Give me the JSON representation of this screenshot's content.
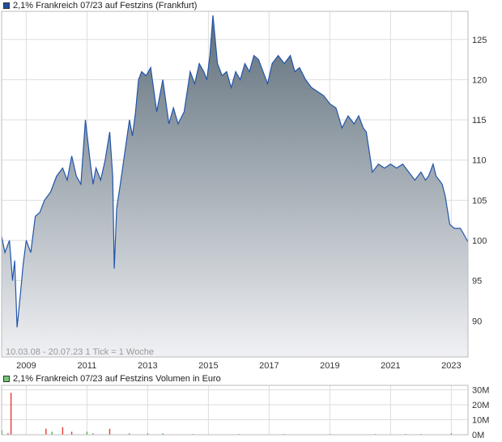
{
  "legend": {
    "price": "2,1% Frankreich 07/23 auf Festzins (Frankfurt)",
    "volume": "2,1% Frankreich 07/23 auf Festzins Volumen in Euro"
  },
  "footer": "10.03.08 - 20.07.23   1 Tick = 1 Woche",
  "colors": {
    "price_line": "#2255aa",
    "area_top": "#5f6f7b",
    "area_bottom": "#f0f1f4",
    "grid": "#dddddd",
    "vol_up": "#4caf50",
    "vol_down": "#e53935",
    "legend_price": "#1f4e9c",
    "legend_volume": "#76c776"
  },
  "chart_data": [
    {
      "type": "area",
      "x_unit": "year",
      "x_ticks": [
        2009,
        2011,
        2013,
        2015,
        2017,
        2019,
        2021,
        2023
      ],
      "x_tick_labels": [
        "2009",
        "2011",
        "2013",
        "2015",
        "2017",
        "2019",
        "2021",
        "2023"
      ],
      "y_ticks": [
        90,
        95,
        100,
        105,
        110,
        115,
        120,
        125
      ],
      "y_tick_labels": [
        "90",
        "95",
        "100",
        "105",
        "110",
        "115",
        "120",
        "125"
      ],
      "xlim": [
        2008.19,
        2023.55
      ],
      "ylim": [
        85.5,
        128.5
      ],
      "y_axis_side": "right",
      "grid": true,
      "x": [
        2008.19,
        2008.3,
        2008.45,
        2008.55,
        2008.62,
        2008.7,
        2008.8,
        2008.9,
        2009.0,
        2009.15,
        2009.3,
        2009.45,
        2009.6,
        2009.8,
        2010.0,
        2010.2,
        2010.35,
        2010.5,
        2010.65,
        2010.8,
        2010.95,
        2011.1,
        2011.2,
        2011.3,
        2011.45,
        2011.6,
        2011.75,
        2011.85,
        2011.9,
        2011.98,
        2012.1,
        2012.25,
        2012.4,
        2012.5,
        2012.6,
        2012.7,
        2012.8,
        2012.95,
        2013.1,
        2013.3,
        2013.5,
        2013.7,
        2013.85,
        2014.0,
        2014.2,
        2014.4,
        2014.55,
        2014.7,
        2014.85,
        2014.95,
        2015.05,
        2015.15,
        2015.3,
        2015.45,
        2015.6,
        2015.75,
        2015.9,
        2016.05,
        2016.2,
        2016.35,
        2016.5,
        2016.65,
        2016.8,
        2016.95,
        2017.1,
        2017.3,
        2017.5,
        2017.7,
        2017.85,
        2018.0,
        2018.2,
        2018.4,
        2018.6,
        2018.8,
        2019.0,
        2019.2,
        2019.4,
        2019.6,
        2019.8,
        2019.95,
        2020.1,
        2020.2,
        2020.4,
        2020.6,
        2020.8,
        2021.0,
        2021.2,
        2021.4,
        2021.6,
        2021.8,
        2022.0,
        2022.15,
        2022.25,
        2022.4,
        2022.5,
        2022.6,
        2022.7,
        2022.8,
        2022.95,
        2023.1,
        2023.3,
        2023.45,
        2023.55
      ],
      "y": [
        100.5,
        98.5,
        100.0,
        95.0,
        97.5,
        89.2,
        93.0,
        97.0,
        100.0,
        98.5,
        103.0,
        103.5,
        105.0,
        106.0,
        108.0,
        109.0,
        107.5,
        110.5,
        108.0,
        107.0,
        115.0,
        110.0,
        107.0,
        109.0,
        107.5,
        110.0,
        113.5,
        108.0,
        96.5,
        104.0,
        107.0,
        111.0,
        115.0,
        113.0,
        116.0,
        120.0,
        121.0,
        120.5,
        121.5,
        116.0,
        120.0,
        114.5,
        116.5,
        114.5,
        116.0,
        121.0,
        119.5,
        122.0,
        121.0,
        120.0,
        123.0,
        128.0,
        122.0,
        120.5,
        121.0,
        119.0,
        121.0,
        120.0,
        122.0,
        121.0,
        123.0,
        122.5,
        121.0,
        119.5,
        122.0,
        123.0,
        122.0,
        123.0,
        121.0,
        121.5,
        120.0,
        119.0,
        118.5,
        118.0,
        117.0,
        116.5,
        114.0,
        115.5,
        114.5,
        115.5,
        114.0,
        113.5,
        108.5,
        109.5,
        109.0,
        109.5,
        109.0,
        109.5,
        108.5,
        107.5,
        108.5,
        107.5,
        108.0,
        109.5,
        108.0,
        107.5,
        107.0,
        105.5,
        102.0,
        101.5,
        101.5,
        100.5,
        99.8
      ]
    },
    {
      "type": "bar",
      "x_unit": "year",
      "y_ticks": [
        0,
        10,
        20,
        30
      ],
      "y_tick_labels": [
        "0M",
        "10M",
        "20M",
        "30M"
      ],
      "ylim": [
        0,
        33
      ],
      "y_axis_side": "right",
      "grid": true,
      "x": [
        2008.2,
        2008.4,
        2008.5,
        2009.65,
        2009.85,
        2010.2,
        2010.5,
        2011.0,
        2011.2,
        2011.75,
        2012.4,
        2013.0,
        2013.5,
        2014.5,
        2016.0,
        2017.5,
        2019.0,
        2020.5,
        2021.5,
        2022.0,
        2023.0
      ],
      "values": [
        3,
        1,
        28,
        4,
        2,
        5,
        2,
        2,
        1,
        4,
        1,
        1,
        1,
        0.5,
        0.5,
        0.5,
        0.5,
        0.5,
        0.5,
        0.5,
        1
      ],
      "colors": [
        "up",
        "down",
        "down",
        "down",
        "up",
        "down",
        "down",
        "up",
        "up",
        "down",
        "up",
        "up",
        "up",
        "up",
        "up",
        "up",
        "up",
        "up",
        "up",
        "up",
        "up"
      ]
    }
  ]
}
